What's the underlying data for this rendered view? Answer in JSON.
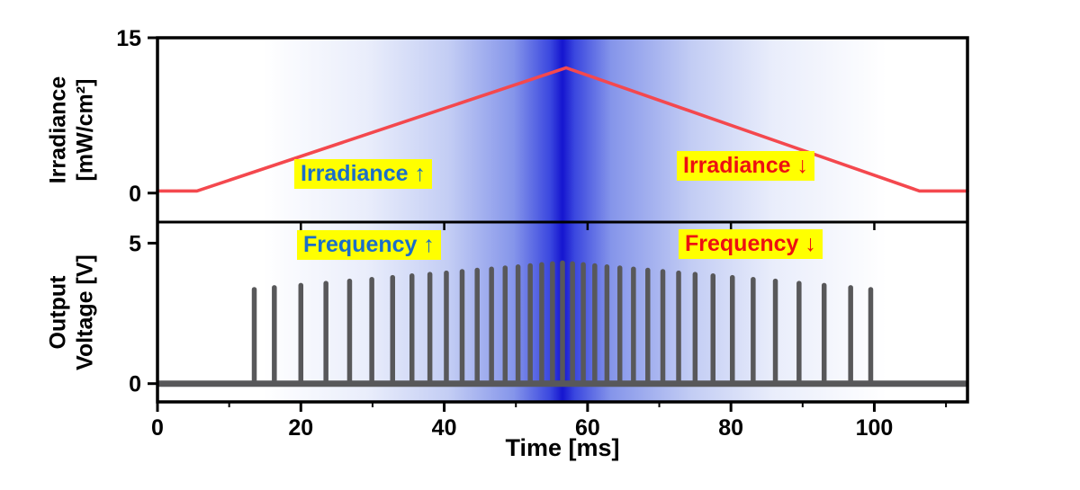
{
  "figure": {
    "bg": "#ffffff",
    "frame_color": "#000000"
  },
  "chart_data": {
    "type": "line",
    "title": "",
    "x_axis": {
      "label": "Time [ms]",
      "ticks": [
        0,
        20,
        40,
        60,
        80,
        100
      ],
      "minor_ticks": [
        10,
        30,
        50,
        70,
        90,
        110
      ],
      "range": [
        0,
        113
      ]
    },
    "background_gradient": {
      "edge_color": "#ffffff",
      "center_color": "#1515cf",
      "center_t": 56.5,
      "stops": [
        [
          0,
          "#ffffff"
        ],
        [
          0.13,
          "#ffffff"
        ],
        [
          0.26,
          "#e9edfb"
        ],
        [
          0.36,
          "#c3cdf4"
        ],
        [
          0.44,
          "#8595ea"
        ],
        [
          0.485,
          "#3a47df"
        ],
        [
          0.5,
          "#1515cf"
        ],
        [
          0.515,
          "#3a47df"
        ],
        [
          0.56,
          "#8595ea"
        ],
        [
          0.66,
          "#c3cdf4"
        ],
        [
          0.76,
          "#e9edfb"
        ],
        [
          0.9,
          "#ffffff"
        ],
        [
          1,
          "#ffffff"
        ]
      ]
    },
    "top_panel": {
      "y_axis": {
        "label_line1": "Irradiance",
        "label_line2": "[mW/cm²]",
        "ticks": [
          0,
          15
        ],
        "range": [
          -2.8,
          15
        ]
      },
      "series": {
        "name": "irradiance-ramp",
        "color": "#f4484e",
        "points": [
          [
            0,
            0.2
          ],
          [
            5.5,
            0.2
          ],
          [
            57,
            12.1
          ],
          [
            106.3,
            0.2
          ],
          [
            113,
            0.2
          ]
        ]
      },
      "annotations": [
        {
          "text": "Irradiance ↑",
          "color": "#1b6ec8",
          "bg": "#ffff00"
        },
        {
          "text": "Irradiance ↓",
          "color": "#ed0f12",
          "bg": "#ffff00"
        }
      ]
    },
    "bottom_panel": {
      "y_axis": {
        "label_line1": "Output",
        "label_line2": "Voltage [V]",
        "ticks": [
          0,
          5
        ],
        "range": [
          -0.65,
          5.75
        ]
      },
      "spikes": {
        "name": "output-voltage-spikes",
        "color": "#58585a",
        "baseline": 0,
        "points": [
          [
            13.5,
            3.35
          ],
          [
            16.3,
            3.42
          ],
          [
            20.0,
            3.5
          ],
          [
            23.5,
            3.57
          ],
          [
            26.8,
            3.65
          ],
          [
            29.9,
            3.71
          ],
          [
            32.8,
            3.78
          ],
          [
            35.5,
            3.84
          ],
          [
            38.0,
            3.89
          ],
          [
            40.3,
            3.94
          ],
          [
            42.5,
            3.99
          ],
          [
            44.6,
            4.04
          ],
          [
            46.6,
            4.08
          ],
          [
            48.5,
            4.12
          ],
          [
            50.3,
            4.16
          ],
          [
            52.0,
            4.2
          ],
          [
            53.6,
            4.24
          ],
          [
            55.1,
            4.27
          ],
          [
            56.5,
            4.3
          ],
          [
            57.9,
            4.27
          ],
          [
            59.4,
            4.24
          ],
          [
            61.0,
            4.2
          ],
          [
            62.7,
            4.16
          ],
          [
            64.5,
            4.12
          ],
          [
            66.4,
            4.08
          ],
          [
            68.4,
            4.04
          ],
          [
            70.5,
            3.99
          ],
          [
            72.7,
            3.94
          ],
          [
            75.0,
            3.89
          ],
          [
            77.5,
            3.84
          ],
          [
            80.2,
            3.78
          ],
          [
            83.1,
            3.71
          ],
          [
            86.2,
            3.65
          ],
          [
            89.5,
            3.57
          ],
          [
            93.0,
            3.5
          ],
          [
            96.7,
            3.42
          ],
          [
            99.5,
            3.35
          ]
        ]
      },
      "annotations": [
        {
          "text": "Frequency ↑",
          "color": "#1b6ec8",
          "bg": "#ffff00"
        },
        {
          "text": "Frequency ↓",
          "color": "#ed0f12",
          "bg": "#ffff00"
        }
      ]
    }
  }
}
